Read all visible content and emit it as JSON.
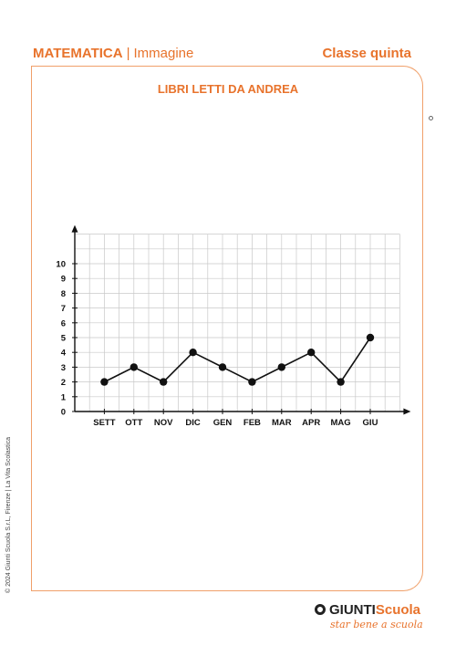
{
  "header": {
    "subject": "MATEMATICA",
    "separator": "|",
    "kind": "Immagine",
    "class_label": "Classe quinta"
  },
  "footer": {
    "copyright": "© 2024 Giunti Scuola S.r.L, Firenze | La Vita Scolastica",
    "logo_word1": "GIUNTI",
    "logo_word2": "Scuola",
    "logo_tagline": "star bene a scuola"
  },
  "colors": {
    "accent": "#e8732c",
    "frame": "#f0a06a",
    "line": "#111111",
    "grid": "#c8c8c8"
  },
  "chart_data": {
    "type": "line",
    "title": "LIBRI LETTI DA ANDREA",
    "categories": [
      "SETT",
      "OTT",
      "NOV",
      "DIC",
      "GEN",
      "FEB",
      "MAR",
      "APR",
      "MAG",
      "GIU"
    ],
    "values": [
      2,
      3,
      2,
      4,
      3,
      2,
      3,
      4,
      2,
      5
    ],
    "y_ticks": [
      "0",
      "1",
      "2",
      "3",
      "4",
      "5",
      "6",
      "7",
      "8",
      "9",
      "10"
    ],
    "ylim": [
      0,
      12
    ],
    "grid": true,
    "xlabel": "",
    "ylabel": ""
  }
}
